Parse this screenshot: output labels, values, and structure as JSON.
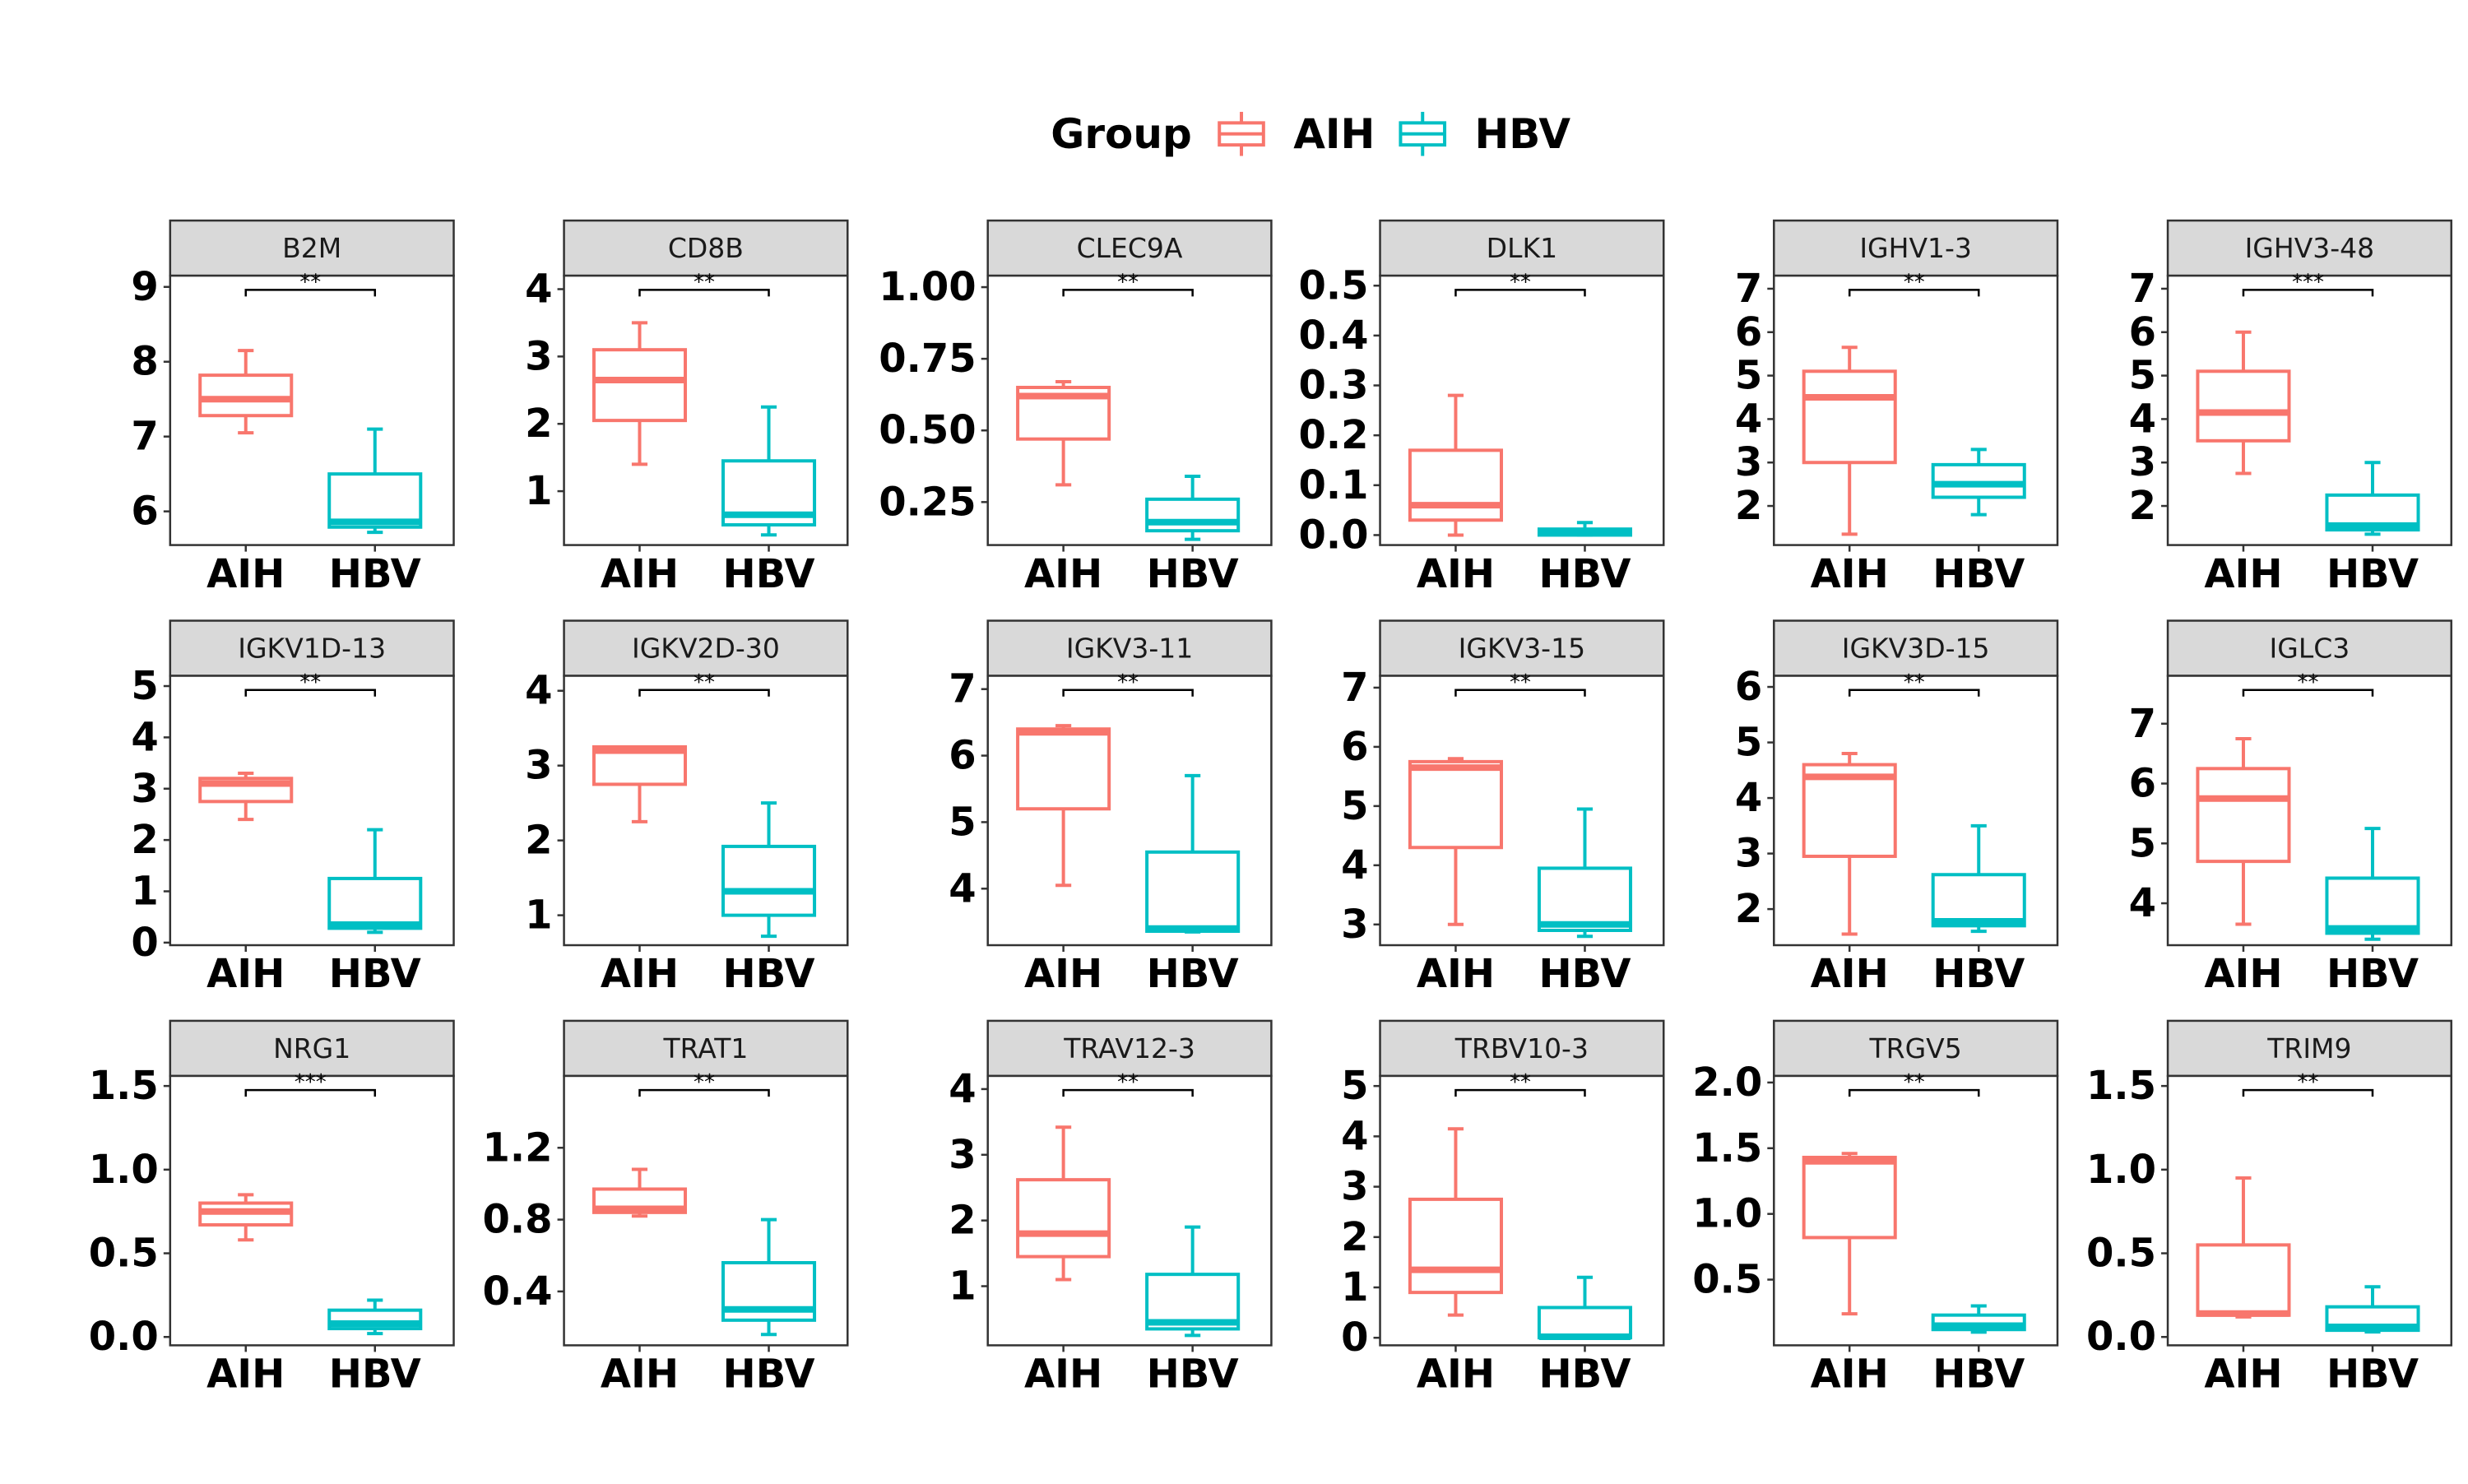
{
  "legend": {
    "title": "Group",
    "items": [
      {
        "label": "AIH",
        "color": "#F8766D"
      },
      {
        "label": "HBV",
        "color": "#00BFC4"
      }
    ]
  },
  "chart_data": [
    {
      "type": "box",
      "title": "B2M",
      "categories": [
        "AIH",
        "HBV"
      ],
      "ylim": [
        5.55,
        9.15
      ],
      "yticks": [
        6,
        7,
        8,
        9
      ],
      "series": [
        {
          "name": "AIH",
          "stats": {
            "min": 7.05,
            "q1": 7.28,
            "median": 7.5,
            "q3": 7.82,
            "max": 8.15
          }
        },
        {
          "name": "HBV",
          "stats": {
            "min": 5.72,
            "q1": 5.79,
            "median": 5.86,
            "q3": 6.5,
            "max": 7.1
          }
        }
      ],
      "significance": "**"
    },
    {
      "type": "box",
      "title": "CD8B",
      "categories": [
        "AIH",
        "HBV"
      ],
      "ylim": [
        0.2,
        4.2
      ],
      "yticks": [
        1,
        2,
        3,
        4
      ],
      "series": [
        {
          "name": "AIH",
          "stats": {
            "min": 1.4,
            "q1": 2.05,
            "median": 2.65,
            "q3": 3.1,
            "max": 3.5
          }
        },
        {
          "name": "HBV",
          "stats": {
            "min": 0.35,
            "q1": 0.5,
            "median": 0.65,
            "q3": 1.45,
            "max": 2.25
          }
        }
      ],
      "significance": "**"
    },
    {
      "type": "box",
      "title": "CLEC9A",
      "categories": [
        "AIH",
        "HBV"
      ],
      "ylim": [
        0.1,
        1.04
      ],
      "yticks": [
        0.25,
        0.5,
        0.75,
        1.0
      ],
      "ytick_labels": [
        "0.25",
        "0.50",
        "0.75",
        "1.00"
      ],
      "series": [
        {
          "name": "AIH",
          "stats": {
            "min": 0.31,
            "q1": 0.47,
            "median": 0.62,
            "q3": 0.65,
            "max": 0.67
          }
        },
        {
          "name": "HBV",
          "stats": {
            "min": 0.12,
            "q1": 0.15,
            "median": 0.18,
            "q3": 0.26,
            "max": 0.34
          }
        }
      ],
      "significance": "**"
    },
    {
      "type": "box",
      "title": "DLK1",
      "categories": [
        "AIH",
        "HBV"
      ],
      "ylim": [
        -0.02,
        0.52
      ],
      "yticks": [
        0.0,
        0.1,
        0.2,
        0.3,
        0.4,
        0.5
      ],
      "ytick_labels": [
        "0.0",
        "0.1",
        "0.2",
        "0.3",
        "0.4",
        "0.5"
      ],
      "series": [
        {
          "name": "AIH",
          "stats": {
            "min": 0.0,
            "q1": 0.03,
            "median": 0.06,
            "q3": 0.17,
            "max": 0.28
          }
        },
        {
          "name": "HBV",
          "stats": {
            "min": 0.0,
            "q1": 0.0,
            "median": 0.005,
            "q3": 0.012,
            "max": 0.025
          }
        }
      ],
      "significance": "**"
    },
    {
      "type": "box",
      "title": "IGHV1-3",
      "categories": [
        "AIH",
        "HBV"
      ],
      "ylim": [
        1.1,
        7.3
      ],
      "yticks": [
        2,
        3,
        4,
        5,
        6,
        7
      ],
      "series": [
        {
          "name": "AIH",
          "stats": {
            "min": 1.35,
            "q1": 3.0,
            "median": 4.5,
            "q3": 5.1,
            "max": 5.65
          }
        },
        {
          "name": "HBV",
          "stats": {
            "min": 1.8,
            "q1": 2.2,
            "median": 2.5,
            "q3": 2.95,
            "max": 3.3
          }
        }
      ],
      "significance": "**"
    },
    {
      "type": "box",
      "title": "IGHV3-48",
      "categories": [
        "AIH",
        "HBV"
      ],
      "ylim": [
        1.1,
        7.3
      ],
      "yticks": [
        2,
        3,
        4,
        5,
        6,
        7
      ],
      "series": [
        {
          "name": "AIH",
          "stats": {
            "min": 2.75,
            "q1": 3.5,
            "median": 4.15,
            "q3": 5.1,
            "max": 6.0
          }
        },
        {
          "name": "HBV",
          "stats": {
            "min": 1.35,
            "q1": 1.45,
            "median": 1.55,
            "q3": 2.25,
            "max": 3.0
          }
        }
      ],
      "significance": "***"
    },
    {
      "type": "box",
      "title": "IGKV1D-13",
      "categories": [
        "AIH",
        "HBV"
      ],
      "ylim": [
        -0.05,
        5.2
      ],
      "yticks": [
        0,
        1,
        2,
        3,
        4,
        5
      ],
      "series": [
        {
          "name": "AIH",
          "stats": {
            "min": 2.4,
            "q1": 2.75,
            "median": 3.1,
            "q3": 3.2,
            "max": 3.3
          }
        },
        {
          "name": "HBV",
          "stats": {
            "min": 0.2,
            "q1": 0.28,
            "median": 0.35,
            "q3": 1.25,
            "max": 2.2
          }
        }
      ],
      "significance": "**"
    },
    {
      "type": "box",
      "title": "IGKV2D-30",
      "categories": [
        "AIH",
        "HBV"
      ],
      "ylim": [
        0.6,
        4.2
      ],
      "yticks": [
        1,
        2,
        3,
        4
      ],
      "series": [
        {
          "name": "AIH",
          "stats": {
            "min": 2.25,
            "q1": 2.75,
            "median": 3.2,
            "q3": 3.25,
            "max": 3.25
          }
        },
        {
          "name": "HBV",
          "stats": {
            "min": 0.72,
            "q1": 1.0,
            "median": 1.32,
            "q3": 1.92,
            "max": 2.5
          }
        }
      ],
      "significance": "**"
    },
    {
      "type": "box",
      "title": "IGKV3-11",
      "categories": [
        "AIH",
        "HBV"
      ],
      "ylim": [
        3.15,
        7.2
      ],
      "yticks": [
        4,
        5,
        6,
        7
      ],
      "series": [
        {
          "name": "AIH",
          "stats": {
            "min": 4.05,
            "q1": 5.2,
            "median": 6.35,
            "q3": 6.4,
            "max": 6.45
          }
        },
        {
          "name": "HBV",
          "stats": {
            "min": 3.35,
            "q1": 3.36,
            "median": 3.4,
            "q3": 4.55,
            "max": 5.7
          }
        }
      ],
      "significance": "**"
    },
    {
      "type": "box",
      "title": "IGKV3-15",
      "categories": [
        "AIH",
        "HBV"
      ],
      "ylim": [
        2.65,
        7.2
      ],
      "yticks": [
        3,
        4,
        5,
        6,
        7
      ],
      "series": [
        {
          "name": "AIH",
          "stats": {
            "min": 3.0,
            "q1": 4.3,
            "median": 5.65,
            "q3": 5.75,
            "max": 5.8
          }
        },
        {
          "name": "HBV",
          "stats": {
            "min": 2.8,
            "q1": 2.9,
            "median": 3.0,
            "q3": 3.95,
            "max": 4.95
          }
        }
      ],
      "significance": "**"
    },
    {
      "type": "box",
      "title": "IGKV3D-15",
      "categories": [
        "AIH",
        "HBV"
      ],
      "ylim": [
        1.35,
        6.2
      ],
      "yticks": [
        2,
        3,
        4,
        5,
        6
      ],
      "series": [
        {
          "name": "AIH",
          "stats": {
            "min": 1.55,
            "q1": 2.95,
            "median": 4.38,
            "q3": 4.6,
            "max": 4.8
          }
        },
        {
          "name": "HBV",
          "stats": {
            "min": 1.6,
            "q1": 1.7,
            "median": 1.78,
            "q3": 2.62,
            "max": 3.5
          }
        }
      ],
      "significance": "**"
    },
    {
      "type": "box",
      "title": "IGLC3",
      "categories": [
        "AIH",
        "HBV"
      ],
      "ylim": [
        3.3,
        7.8
      ],
      "yticks": [
        4,
        5,
        6,
        7
      ],
      "series": [
        {
          "name": "AIH",
          "stats": {
            "min": 3.65,
            "q1": 4.7,
            "median": 5.75,
            "q3": 6.25,
            "max": 6.75
          }
        },
        {
          "name": "HBV",
          "stats": {
            "min": 3.4,
            "q1": 3.5,
            "median": 3.58,
            "q3": 4.42,
            "max": 5.25
          }
        }
      ],
      "significance": "**"
    },
    {
      "type": "box",
      "title": "NRG1",
      "categories": [
        "AIH",
        "HBV"
      ],
      "ylim": [
        -0.05,
        1.56
      ],
      "yticks": [
        0.0,
        0.5,
        1.0,
        1.5
      ],
      "ytick_labels": [
        "0.0",
        "0.5",
        "1.0",
        "1.5"
      ],
      "series": [
        {
          "name": "AIH",
          "stats": {
            "min": 0.58,
            "q1": 0.67,
            "median": 0.75,
            "q3": 0.8,
            "max": 0.85
          }
        },
        {
          "name": "HBV",
          "stats": {
            "min": 0.02,
            "q1": 0.05,
            "median": 0.08,
            "q3": 0.16,
            "max": 0.22
          }
        }
      ],
      "significance": "***"
    },
    {
      "type": "box",
      "title": "TRAT1",
      "categories": [
        "AIH",
        "HBV"
      ],
      "ylim": [
        0.1,
        1.6
      ],
      "yticks": [
        0.4,
        0.8,
        1.2
      ],
      "series": [
        {
          "name": "AIH",
          "stats": {
            "min": 0.82,
            "q1": 0.84,
            "median": 0.86,
            "q3": 0.97,
            "max": 1.08
          }
        },
        {
          "name": "HBV",
          "stats": {
            "min": 0.16,
            "q1": 0.24,
            "median": 0.3,
            "q3": 0.56,
            "max": 0.8
          }
        }
      ],
      "significance": "**"
    },
    {
      "type": "box",
      "title": "TRAV12-3",
      "categories": [
        "AIH",
        "HBV"
      ],
      "ylim": [
        0.1,
        4.2
      ],
      "yticks": [
        1,
        2,
        3,
        4
      ],
      "series": [
        {
          "name": "AIH",
          "stats": {
            "min": 1.1,
            "q1": 1.45,
            "median": 1.8,
            "q3": 2.62,
            "max": 3.42
          }
        },
        {
          "name": "HBV",
          "stats": {
            "min": 0.25,
            "q1": 0.35,
            "median": 0.45,
            "q3": 1.18,
            "max": 1.9
          }
        }
      ],
      "significance": "**"
    },
    {
      "type": "box",
      "title": "TRBV10-3",
      "categories": [
        "AIH",
        "HBV"
      ],
      "ylim": [
        -0.15,
        5.2
      ],
      "yticks": [
        0,
        1,
        2,
        3,
        4,
        5
      ],
      "series": [
        {
          "name": "AIH",
          "stats": {
            "min": 0.45,
            "q1": 0.9,
            "median": 1.35,
            "q3": 2.75,
            "max": 4.15
          }
        },
        {
          "name": "HBV",
          "stats": {
            "min": 0.0,
            "q1": 0.0,
            "median": 0.02,
            "q3": 0.6,
            "max": 1.2
          }
        }
      ],
      "significance": "**"
    },
    {
      "type": "box",
      "title": "TRGV5",
      "categories": [
        "AIH",
        "HBV"
      ],
      "ylim": [
        0.0,
        2.05
      ],
      "yticks": [
        0.5,
        1.0,
        1.5,
        2.0
      ],
      "ytick_labels": [
        "0.5",
        "1.0",
        "1.5",
        "2.0"
      ],
      "series": [
        {
          "name": "AIH",
          "stats": {
            "min": 0.24,
            "q1": 0.82,
            "median": 1.4,
            "q3": 1.43,
            "max": 1.46
          }
        },
        {
          "name": "HBV",
          "stats": {
            "min": 0.1,
            "q1": 0.12,
            "median": 0.15,
            "q3": 0.23,
            "max": 0.3
          }
        }
      ],
      "significance": "**"
    },
    {
      "type": "box",
      "title": "TRIM9",
      "categories": [
        "AIH",
        "HBV"
      ],
      "ylim": [
        -0.05,
        1.56
      ],
      "yticks": [
        0.0,
        0.5,
        1.0,
        1.5
      ],
      "ytick_labels": [
        "0.0",
        "0.5",
        "1.0",
        "1.5"
      ],
      "series": [
        {
          "name": "AIH",
          "stats": {
            "min": 0.12,
            "q1": 0.13,
            "median": 0.14,
            "q3": 0.55,
            "max": 0.95
          }
        },
        {
          "name": "HBV",
          "stats": {
            "min": 0.03,
            "q1": 0.04,
            "median": 0.06,
            "q3": 0.18,
            "max": 0.3
          }
        }
      ],
      "significance": "**"
    }
  ]
}
